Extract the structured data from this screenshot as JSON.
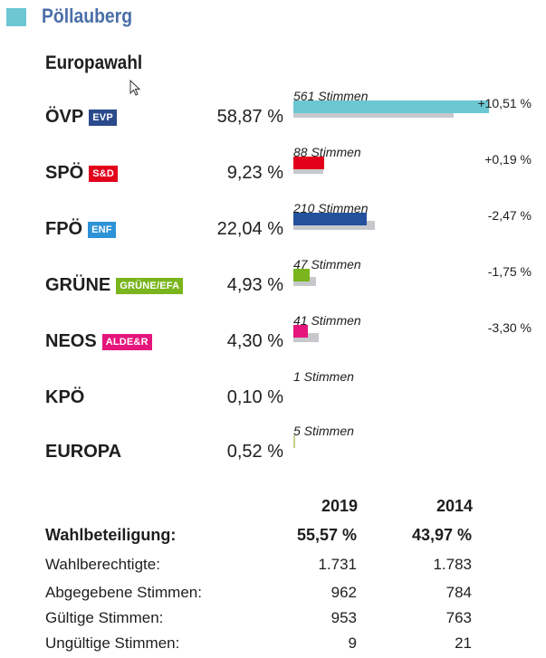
{
  "header": {
    "place": "Pöllauberg",
    "election": "Europawahl",
    "marker_color": "#6cc7d3",
    "title_color": "#4a6ea8"
  },
  "chart_data": {
    "type": "bar",
    "title": "Europawahl",
    "categories": [
      "ÖVP",
      "SPÖ",
      "FPÖ",
      "GRÜNE",
      "NEOS",
      "KPÖ",
      "EUROPA"
    ],
    "series": [
      {
        "name": "2019",
        "values": [
          58.87,
          9.23,
          22.04,
          4.93,
          4.3,
          0.1,
          0.52
        ]
      },
      {
        "name": "2014",
        "values": [
          48.36,
          9.04,
          24.51,
          6.68,
          7.6,
          null,
          null
        ]
      }
    ],
    "ylim": [
      0,
      60
    ],
    "xlabel": "",
    "ylabel": ""
  },
  "parties": [
    {
      "name": "ÖVP",
      "badge": "EVP",
      "badge_color": "#2a4a8c",
      "percent_label": "58,87 %",
      "percent": 58.87,
      "prev_percent": 48.36,
      "votes_label": "561 Stimmen",
      "change_label": "+10,51 %",
      "color": "#6cc7d3"
    },
    {
      "name": "SPÖ",
      "badge": "S&D",
      "badge_color": "#e3001b",
      "percent_label": "9,23 %",
      "percent": 9.23,
      "prev_percent": 9.04,
      "votes_label": "88 Stimmen",
      "change_label": "+0,19 %",
      "color": "#e3001b"
    },
    {
      "name": "FPÖ",
      "badge": "ENF",
      "badge_color": "#2c93d6",
      "percent_label": "22,04 %",
      "percent": 22.04,
      "prev_percent": 24.51,
      "votes_label": "210 Stimmen",
      "change_label": "-2,47 %",
      "color": "#24509c"
    },
    {
      "name": "GRÜNE",
      "badge": "GRÜNE/EFA",
      "badge_color": "#7ab51d",
      "percent_label": "4,93 %",
      "percent": 4.93,
      "prev_percent": 6.68,
      "votes_label": "47 Stimmen",
      "change_label": "-1,75 %",
      "color": "#7ab51d"
    },
    {
      "name": "NEOS",
      "badge": "ALDE&R",
      "badge_color": "#e6157c",
      "percent_label": "4,30 %",
      "percent": 4.3,
      "prev_percent": 7.6,
      "votes_label": "41 Stimmen",
      "change_label": "-3,30 %",
      "color": "#e6157c"
    },
    {
      "name": "KPÖ",
      "badge": "",
      "badge_color": "",
      "percent_label": "0,10 %",
      "percent": 0.1,
      "prev_percent": null,
      "votes_label": "1 Stimmen",
      "change_label": "",
      "color": "#c0392b"
    },
    {
      "name": "EUROPA",
      "badge": "",
      "badge_color": "",
      "percent_label": "0,52 %",
      "percent": 0.52,
      "prev_percent": null,
      "votes_label": "5 Stimmen",
      "change_label": "",
      "color": "#c8cf8a"
    }
  ],
  "stats": {
    "year_a": "2019",
    "year_b": "2014",
    "rows": [
      {
        "label": "Wahlbeteiligung:",
        "a": "55,57 %",
        "b": "43,97 %",
        "bold": true
      },
      {
        "label": "Wahlberechtigte:",
        "a": "1.731",
        "b": "1.783",
        "bold": false
      },
      {
        "label": "Abgegebene Stimmen:",
        "a": "962",
        "b": "784",
        "bold": false
      },
      {
        "label": "Gültige Stimmen:",
        "a": "953",
        "b": "763",
        "bold": false
      },
      {
        "label": "Ungültige Stimmen:",
        "a": "9",
        "b": "21",
        "bold": false
      }
    ]
  }
}
